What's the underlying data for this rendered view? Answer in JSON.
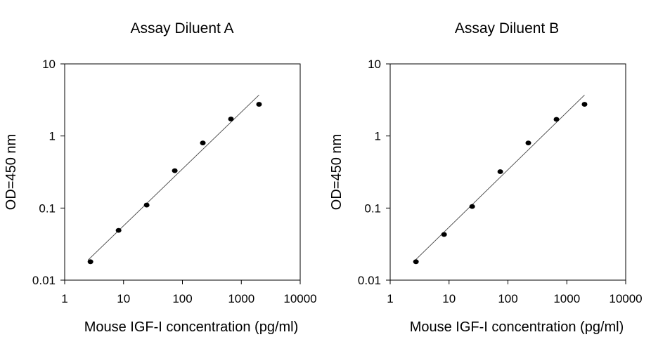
{
  "chart_data": [
    {
      "type": "scatter",
      "title": "Assay Diluent A",
      "xlabel": "Mouse IGF-I concentration (pg/ml)",
      "ylabel": "OD=450 nm",
      "x_scale": "log",
      "y_scale": "log",
      "xlim": [
        1,
        10000
      ],
      "ylim": [
        0.01,
        10
      ],
      "x_ticks": [
        "1",
        "10",
        "100",
        "1000",
        "10000"
      ],
      "y_ticks": [
        "10",
        "1",
        "0.1",
        "0.01"
      ],
      "grid": false,
      "series": [
        {
          "x": [
            2.74,
            8.23,
            24.7,
            74.1,
            222,
            667,
            2000
          ],
          "y": [
            0.018,
            0.049,
            0.11,
            0.33,
            0.8,
            1.72,
            2.75
          ]
        }
      ],
      "fit_line": {
        "x": [
          2.5,
          2000
        ],
        "y": [
          0.019,
          3.7
        ]
      }
    },
    {
      "type": "scatter",
      "title": "Assay Diluent B",
      "xlabel": "Mouse IGF-I concentration (pg/ml)",
      "ylabel": "OD=450 nm",
      "x_scale": "log",
      "y_scale": "log",
      "xlim": [
        1,
        10000
      ],
      "ylim": [
        0.01,
        10
      ],
      "x_ticks": [
        "1",
        "10",
        "100",
        "1000",
        "10000"
      ],
      "y_ticks": [
        "10",
        "1",
        "0.1",
        "0.01"
      ],
      "grid": false,
      "series": [
        {
          "x": [
            2.74,
            8.23,
            24.7,
            74.1,
            222,
            667,
            2000
          ],
          "y": [
            0.018,
            0.043,
            0.105,
            0.32,
            0.8,
            1.7,
            2.75
          ]
        }
      ],
      "fit_line": {
        "x": [
          2.5,
          2000
        ],
        "y": [
          0.018,
          3.7
        ]
      }
    }
  ]
}
